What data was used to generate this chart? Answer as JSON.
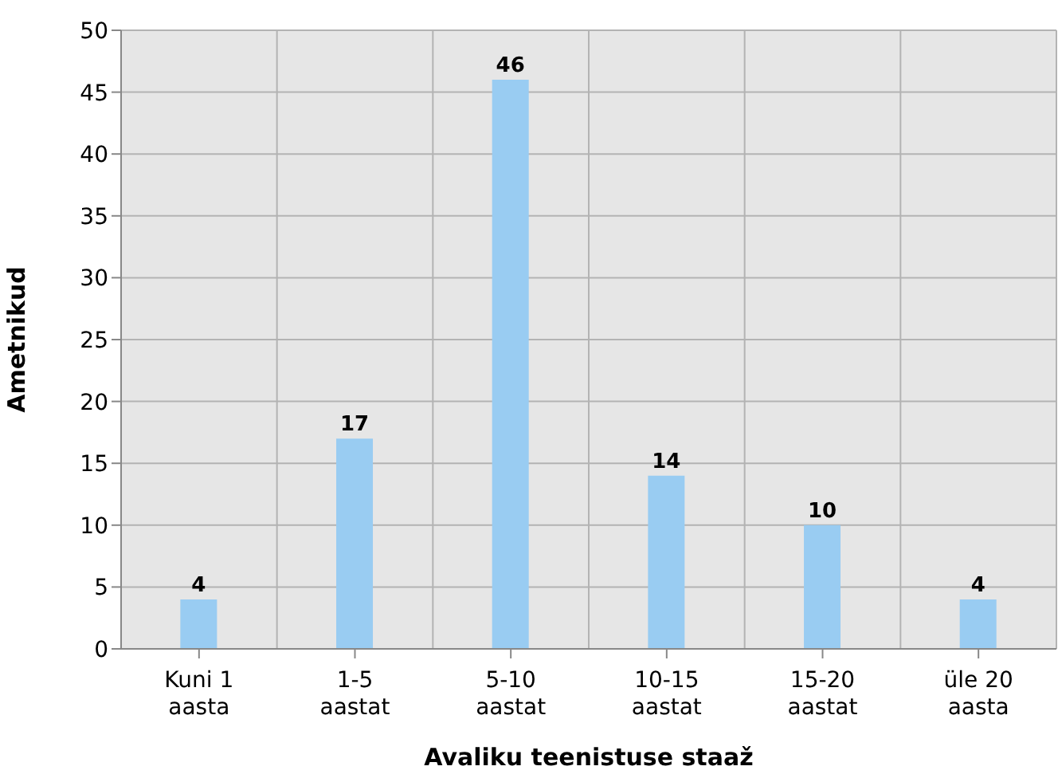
{
  "chart_data": {
    "type": "bar",
    "xlabel": "Avaliku teenistuse staaž",
    "ylabel": "Ametnikud",
    "categories": [
      "Kuni 1 aasta",
      "1-5 aastat",
      "5-10 aastat",
      "10-15 aastat",
      "15-20 aastat",
      "üle 20 aasta"
    ],
    "values": [
      4,
      17,
      46,
      14,
      10,
      4
    ],
    "color": "#99ccf2",
    "ylim": [
      0,
      50
    ],
    "yticks": [
      0,
      5,
      10,
      15,
      20,
      25,
      30,
      35,
      40,
      45,
      50
    ],
    "grid": true,
    "data_labels": true
  }
}
